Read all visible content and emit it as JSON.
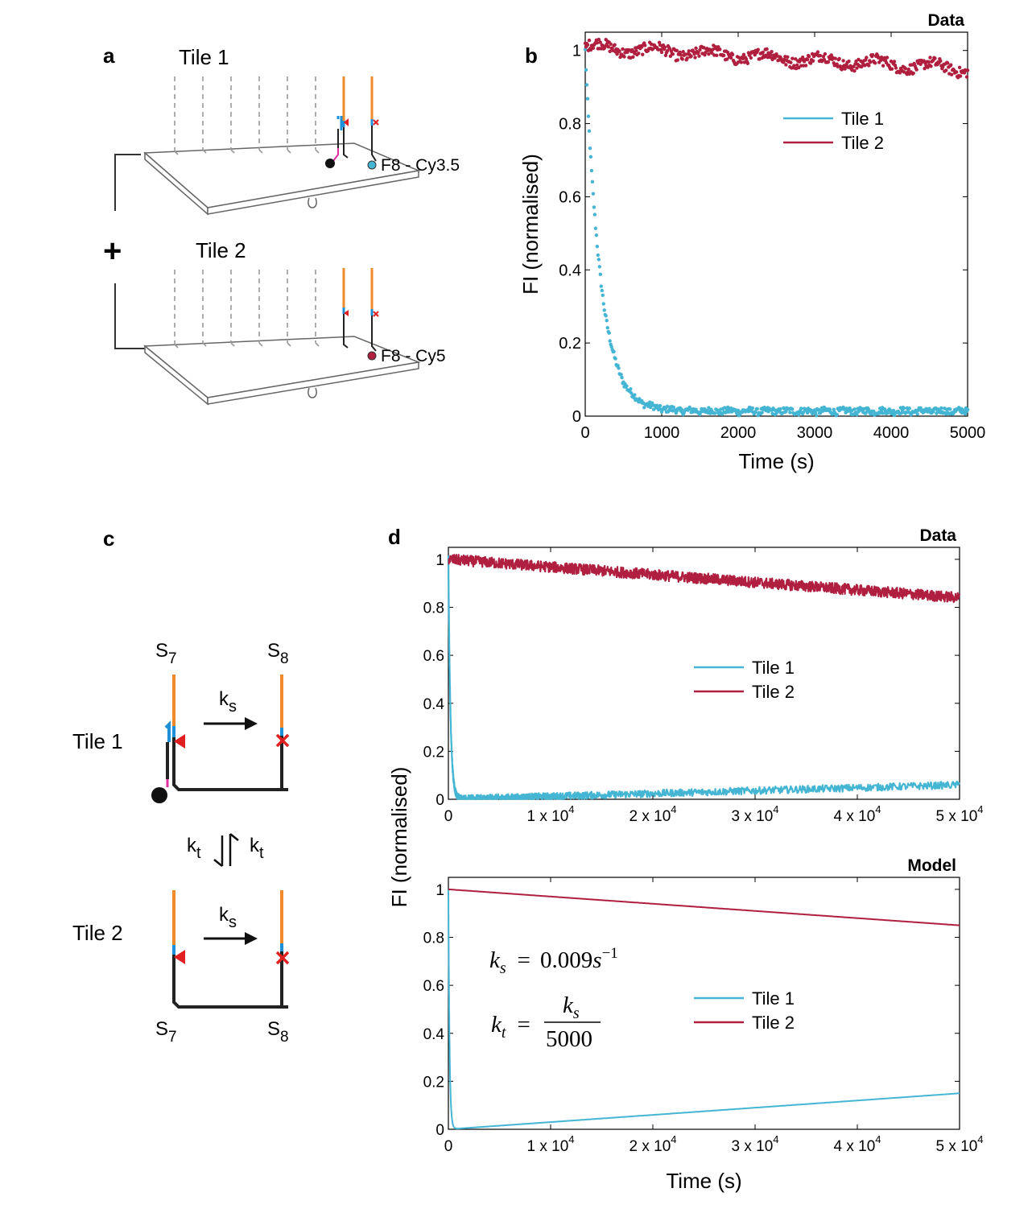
{
  "colors": {
    "tile1": "#45b5d4",
    "tile2": "#b01f3f",
    "orange": "#f08a2a",
    "blue": "#1e90d8",
    "red": "#e02020",
    "pink": "#e030a0",
    "grey": "#999999"
  },
  "panel_a": {
    "label": "a",
    "tile1_title": "Tile 1",
    "tile2_title": "Tile 2",
    "plus": "+",
    "tile1_fluor": "F8 - Cy3.5",
    "tile2_fluor": "F8 - Cy5"
  },
  "panel_c": {
    "label": "c",
    "tile1_label": "Tile 1",
    "tile2_label": "Tile 2",
    "s7_top": {
      "base": "S",
      "sub": "7"
    },
    "s8_top": {
      "base": "S",
      "sub": "8"
    },
    "s7_bottom": {
      "base": "S",
      "sub": "7"
    },
    "s8_bottom": {
      "base": "S",
      "sub": "8"
    },
    "ks1": {
      "base": "k",
      "sub": "s"
    },
    "ks2": {
      "base": "k",
      "sub": "s"
    },
    "kt_left": {
      "base": "k",
      "sub": "t"
    },
    "kt_right": {
      "base": "k",
      "sub": "t"
    }
  },
  "chart_data": [
    {
      "id": "b",
      "panel_label": "b",
      "type": "scatter",
      "title": "Data",
      "xlabel": "Time (s)",
      "ylabel": "FI (normalised)",
      "xlim": [
        0,
        5000
      ],
      "ylim": [
        0,
        1.05
      ],
      "xticks": [
        0,
        1000,
        2000,
        3000,
        4000,
        5000
      ],
      "xtick_labels": [
        "0",
        "1000",
        "2000",
        "3000",
        "4000",
        "5000"
      ],
      "yticks": [
        0,
        0.2,
        0.4,
        0.6,
        0.8,
        1
      ],
      "ytick_labels": [
        "0",
        "0.2",
        "0.4",
        "0.6",
        "0.8",
        "1"
      ],
      "legend_position": "top-right",
      "series": [
        {
          "name": "Tile 1",
          "color": "#45b5d4",
          "shape": "decay",
          "y0": 1.0,
          "tau": 200,
          "end": 0.01
        },
        {
          "name": "Tile 2",
          "color": "#b01f3f",
          "shape": "linear",
          "y0": 1.01,
          "end": 0.95
        }
      ]
    },
    {
      "id": "d_data",
      "panel_label": "d",
      "type": "line",
      "title": "Data",
      "xlabel": "",
      "ylabel": "FI (normalised)",
      "xlim": [
        0,
        50000
      ],
      "ylim": [
        0,
        1.05
      ],
      "xticks": [
        0,
        10000,
        20000,
        30000,
        40000,
        50000
      ],
      "xtick_labels": [
        {
          "text": "0"
        },
        {
          "text": "1 x 10",
          "sup": "4"
        },
        {
          "text": "2 x 10",
          "sup": "4"
        },
        {
          "text": "3 x 10",
          "sup": "4"
        },
        {
          "text": "4 x 10",
          "sup": "4"
        },
        {
          "text": "5 x 10",
          "sup": "4"
        }
      ],
      "yticks": [
        0,
        0.2,
        0.4,
        0.6,
        0.8,
        1
      ],
      "ytick_labels": [
        "0",
        "0.2",
        "0.4",
        "0.6",
        "0.8",
        "1"
      ],
      "legend_position": "center",
      "series": [
        {
          "name": "Tile 1",
          "color": "#45b5d4",
          "shape": "decay_rise",
          "y0": 1.0,
          "tau": 200,
          "end": 0.06
        },
        {
          "name": "Tile 2",
          "color": "#b01f3f",
          "shape": "linear",
          "y0": 1.0,
          "end": 0.84
        }
      ]
    },
    {
      "id": "d_model",
      "type": "line",
      "title": "Model",
      "xlabel": "Time (s)",
      "ylabel": "",
      "xlim": [
        0,
        50000
      ],
      "ylim": [
        0,
        1.05
      ],
      "xticks": [
        0,
        10000,
        20000,
        30000,
        40000,
        50000
      ],
      "xtick_labels": [
        {
          "text": "0"
        },
        {
          "text": "1 x 10",
          "sup": "4"
        },
        {
          "text": "2 x 10",
          "sup": "4"
        },
        {
          "text": "3 x 10",
          "sup": "4"
        },
        {
          "text": "4 x 10",
          "sup": "4"
        },
        {
          "text": "5 x 10",
          "sup": "4"
        }
      ],
      "yticks": [
        0,
        0.2,
        0.4,
        0.6,
        0.8,
        1
      ],
      "ytick_labels": [
        "0",
        "0.2",
        "0.4",
        "0.6",
        "0.8",
        "1"
      ],
      "legend_position": "center-right",
      "equations": {
        "ks_lhs": "k",
        "ks_lhs_sub": "s",
        "ks_rhs": "0.009",
        "ks_unit": "s",
        "ks_exp": "−1",
        "kt_lhs": "k",
        "kt_lhs_sub": "t",
        "kt_num": "k",
        "kt_num_sub": "s",
        "kt_den": "5000",
        "eq": "="
      },
      "series": [
        {
          "name": "Tile 1",
          "color": "#45b5d4",
          "shape": "decay_rise",
          "y0": 1.0,
          "tau": 111,
          "end": 0.15
        },
        {
          "name": "Tile 2",
          "color": "#b01f3f",
          "shape": "linear",
          "y0": 1.0,
          "end": 0.85
        }
      ]
    }
  ]
}
